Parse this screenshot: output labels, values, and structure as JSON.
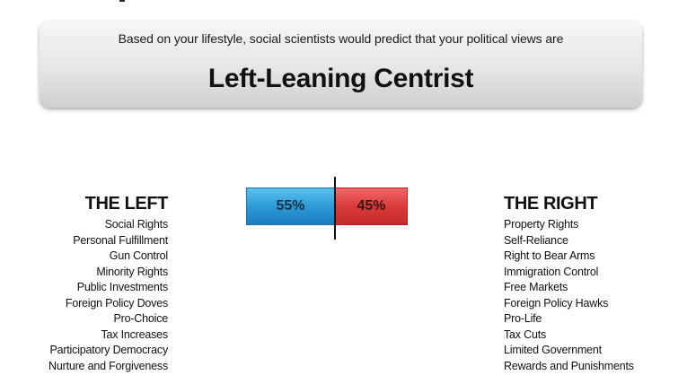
{
  "banner": {
    "intro": "Based on your lifestyle, social scientists would predict that your political views are",
    "result": "Left-Leaning Centrist"
  },
  "meter": {
    "left_percent": 55,
    "right_percent": 45,
    "left_label": "55%",
    "right_label": "45%",
    "colors": {
      "left": "#2d9ad6",
      "right": "#d93a3a"
    }
  },
  "left": {
    "heading": "THE LEFT",
    "items": [
      "Social Rights",
      "Personal Fulfillment",
      "Gun Control",
      "Minority Rights",
      "Public Investments",
      "Foreign Policy Doves",
      "Pro-Choice",
      "Tax Increases",
      "Participatory Democracy",
      "Nurture and Forgiveness"
    ]
  },
  "right": {
    "heading": "THE RIGHT",
    "items": [
      "Property Rights",
      "Self-Reliance",
      "Right to Bear Arms",
      "Immigration Control",
      "Free Markets",
      "Foreign Policy Hawks",
      "Pro-Life",
      "Tax Cuts",
      "Limited Government",
      "Rewards and Punishments"
    ]
  }
}
